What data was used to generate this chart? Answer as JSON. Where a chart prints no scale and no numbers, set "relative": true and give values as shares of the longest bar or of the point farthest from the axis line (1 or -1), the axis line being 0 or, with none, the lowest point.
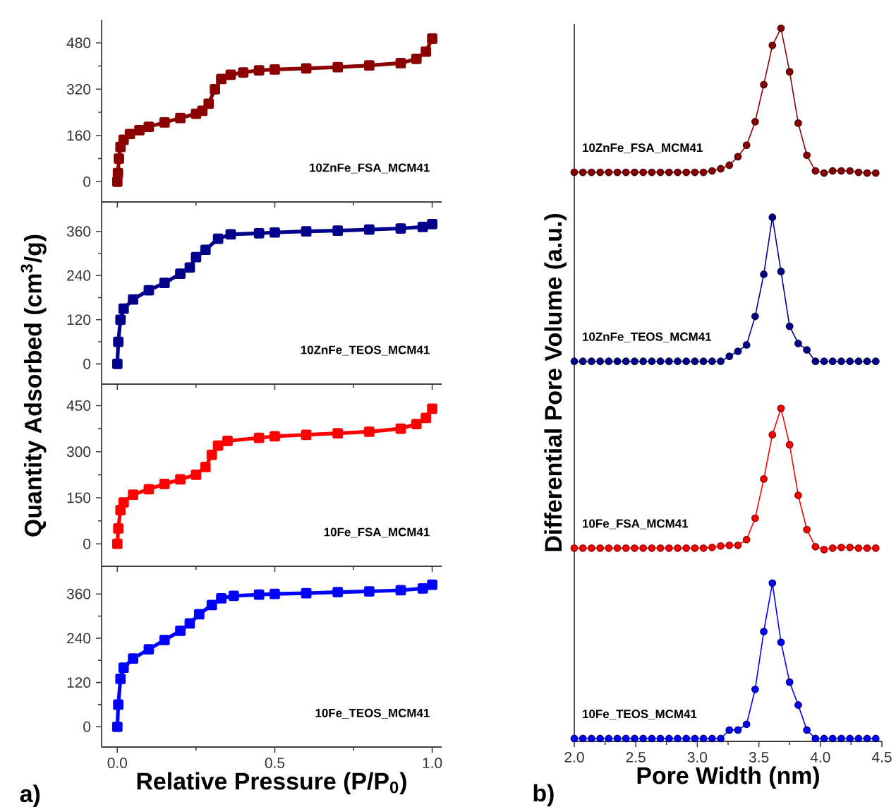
{
  "chart_data": [
    {
      "type": "line",
      "marker": "square",
      "xlim": [
        -0.05,
        1.03
      ],
      "ylim": [
        -70,
        560
      ],
      "yticks": [
        0,
        160,
        320,
        480
      ],
      "tick_labels": "y",
      "xticks": [
        0,
        0.5,
        1
      ],
      "x": [
        0,
        0.002,
        0.005,
        0.01,
        0.02,
        0.04,
        0.07,
        0.1,
        0.15,
        0.2,
        0.25,
        0.27,
        0.29,
        0.31,
        0.33,
        0.36,
        0.4,
        0.45,
        0.5,
        0.6,
        0.7,
        0.8,
        0.9,
        0.95,
        0.98,
        1.0
      ],
      "series": [
        {
          "name": "10ZnFe_FSA_MCM41",
          "color": "#8b0000",
          "values": [
            0,
            30,
            80,
            120,
            145,
            165,
            178,
            190,
            205,
            220,
            235,
            245,
            270,
            320,
            355,
            370,
            378,
            385,
            388,
            392,
            396,
            402,
            410,
            425,
            450,
            495
          ]
        }
      ]
    },
    {
      "type": "line",
      "marker": "square",
      "xlim": [
        -0.05,
        1.03
      ],
      "ylim": [
        -55,
        440
      ],
      "yticks": [
        0,
        120,
        240,
        360
      ],
      "tick_labels": "y",
      "xticks": [
        0,
        0.5,
        1
      ],
      "x": [
        0,
        0.003,
        0.01,
        0.02,
        0.05,
        0.1,
        0.15,
        0.2,
        0.23,
        0.25,
        0.28,
        0.32,
        0.36,
        0.45,
        0.5,
        0.6,
        0.7,
        0.8,
        0.9,
        0.97,
        1.0
      ],
      "series": [
        {
          "name": "10ZnFe_TEOS_MCM41",
          "color": "#00008b",
          "values": [
            0,
            60,
            120,
            150,
            175,
            200,
            220,
            245,
            262,
            290,
            310,
            340,
            352,
            355,
            357,
            360,
            362,
            365,
            368,
            372,
            380
          ]
        }
      ]
    },
    {
      "type": "line",
      "marker": "square",
      "xlim": [
        -0.05,
        1.03
      ],
      "ylim": [
        -73,
        520
      ],
      "yticks": [
        0,
        150,
        300,
        450
      ],
      "tick_labels": "y",
      "xticks": [
        0,
        0.5,
        1
      ],
      "x": [
        0,
        0.003,
        0.01,
        0.02,
        0.05,
        0.1,
        0.15,
        0.2,
        0.25,
        0.28,
        0.3,
        0.32,
        0.35,
        0.45,
        0.5,
        0.6,
        0.7,
        0.8,
        0.9,
        0.95,
        0.98,
        1.0
      ],
      "series": [
        {
          "name": "10Fe_FSA_MCM41",
          "color": "#ff0000",
          "values": [
            0,
            50,
            110,
            135,
            160,
            178,
            195,
            210,
            225,
            250,
            290,
            320,
            335,
            345,
            350,
            355,
            360,
            365,
            375,
            390,
            410,
            440
          ]
        }
      ]
    },
    {
      "type": "line",
      "marker": "square",
      "xlabel": "Relative Pressure (P/P$_{0}$)",
      "ylabel": "Quantity Adsorbed (cm$^{3}$/g)",
      "annotations": [
        "a)"
      ],
      "xlim": [
        -0.05,
        1.03
      ],
      "xticks": [
        {
          "value": 0,
          "label": "0.0"
        },
        0.5,
        {
          "value": 1,
          "label": "1.0"
        }
      ],
      "ylim": [
        -55,
        435
      ],
      "yticks": [
        0,
        120,
        240,
        360
      ],
      "x": [
        0,
        0.003,
        0.01,
        0.02,
        0.05,
        0.1,
        0.15,
        0.2,
        0.23,
        0.26,
        0.3,
        0.33,
        0.37,
        0.45,
        0.5,
        0.6,
        0.7,
        0.8,
        0.9,
        0.97,
        1.0
      ],
      "series": [
        {
          "name": "10Fe_TEOS_MCM41",
          "color": "#0000ff",
          "values": [
            0,
            60,
            130,
            160,
            185,
            210,
            235,
            260,
            280,
            305,
            330,
            348,
            355,
            358,
            360,
            362,
            365,
            367,
            370,
            375,
            385
          ]
        }
      ]
    },
    {
      "type": "line",
      "marker": "circle",
      "relative": true,
      "xlabel": "Pore Width (nm)",
      "ylabel": "Differential Pore Volume (a.u.)",
      "annotations": [
        "b)"
      ],
      "xlim": [
        2.0,
        4.5
      ],
      "xticks": [
        {
          "value": 2,
          "label": "2.0"
        },
        2.5,
        {
          "value": 3,
          "label": "3.0"
        },
        3.5,
        {
          "value": 4,
          "label": "4.0"
        },
        4.5
      ],
      "x": [
        2.0,
        2.07,
        2.14,
        2.21,
        2.28,
        2.35,
        2.42,
        2.49,
        2.56,
        2.63,
        2.7,
        2.77,
        2.84,
        2.91,
        2.98,
        3.05,
        3.12,
        3.19,
        3.26,
        3.33,
        3.4,
        3.47,
        3.54,
        3.61,
        3.68,
        3.75,
        3.82,
        3.89,
        3.96,
        4.03,
        4.1,
        4.17,
        4.24,
        4.31,
        4.38,
        4.45
      ],
      "series": [
        {
          "name": "10ZnFe_FSA_MCM41",
          "color": "#8b0000",
          "values": [
            0.798,
            0.798,
            0.798,
            0.798,
            0.798,
            0.798,
            0.798,
            0.798,
            0.798,
            0.798,
            0.798,
            0.798,
            0.798,
            0.798,
            0.798,
            0.798,
            0.8,
            0.803,
            0.808,
            0.82,
            0.836,
            0.869,
            0.921,
            0.976,
            1.0,
            0.939,
            0.867,
            0.822,
            0.8,
            0.797,
            0.8,
            0.8,
            0.8,
            0.798,
            0.797,
            0.797
          ]
        },
        {
          "name": "10ZnFe_TEOS_MCM41",
          "color": "#00008b",
          "values": [
            0.533,
            0.533,
            0.533,
            0.533,
            0.533,
            0.533,
            0.533,
            0.533,
            0.533,
            0.533,
            0.533,
            0.533,
            0.533,
            0.533,
            0.533,
            0.533,
            0.533,
            0.533,
            0.54,
            0.547,
            0.556,
            0.596,
            0.655,
            0.735,
            0.659,
            0.582,
            0.558,
            0.549,
            0.533,
            0.533,
            0.533,
            0.533,
            0.533,
            0.533,
            0.533,
            0.533
          ]
        },
        {
          "name": "10Fe_FSA_MCM41",
          "color": "#ff0000",
          "values": [
            0.271,
            0.271,
            0.271,
            0.271,
            0.271,
            0.271,
            0.271,
            0.271,
            0.271,
            0.271,
            0.271,
            0.271,
            0.271,
            0.271,
            0.271,
            0.271,
            0.272,
            0.274,
            0.275,
            0.275,
            0.283,
            0.313,
            0.368,
            0.43,
            0.467,
            0.416,
            0.345,
            0.297,
            0.273,
            0.269,
            0.271,
            0.272,
            0.272,
            0.271,
            0.271,
            0.271
          ]
        },
        {
          "name": "10Fe_TEOS_MCM41",
          "color": "#0000ff",
          "values": [
            0.004,
            0.004,
            0.004,
            0.004,
            0.004,
            0.004,
            0.004,
            0.004,
            0.004,
            0.004,
            0.004,
            0.004,
            0.004,
            0.004,
            0.004,
            0.004,
            0.004,
            0.004,
            0.016,
            0.016,
            0.024,
            0.073,
            0.154,
            0.222,
            0.139,
            0.083,
            0.051,
            0.016,
            0.004,
            0.004,
            0.004,
            0.004,
            0.004,
            0.004,
            0.004,
            0.004
          ]
        }
      ]
    }
  ]
}
